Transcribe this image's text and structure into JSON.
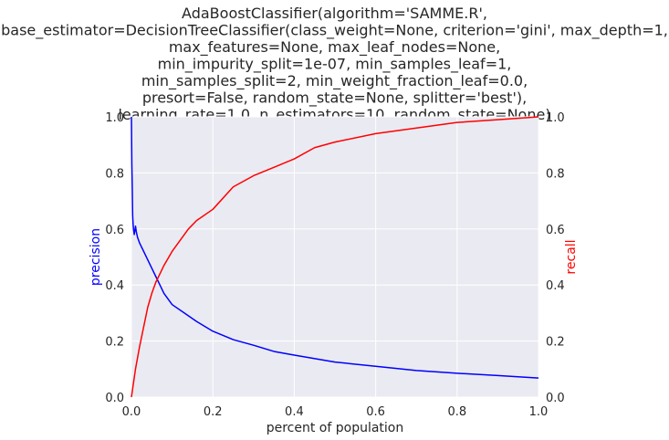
{
  "chart_data": {
    "type": "line",
    "title_lines": [
      "AdaBoostClassifier(algorithm='SAMME.R',",
      "base_estimator=DecisionTreeClassifier(class_weight=None, criterion='gini', max_depth=1,",
      "max_features=None, max_leaf_nodes=None,",
      "min_impurity_split=1e-07, min_samples_leaf=1,",
      "min_samples_split=2, min_weight_fraction_leaf=0.0,",
      "presort=False, random_state=None, splitter='best'),",
      "learning_rate=1.0, n_estimators=10, random_state=None)"
    ],
    "xlabel": "percent of population",
    "ylabel_left": "precision",
    "ylabel_right": "recall",
    "xlim": [
      0,
      1
    ],
    "ylim_left": [
      0,
      1
    ],
    "ylim_right": [
      0,
      1
    ],
    "x_ticks": [
      "0.0",
      "0.2",
      "0.4",
      "0.6",
      "0.8",
      "1.0"
    ],
    "y_ticks_left": [
      "0.0",
      "0.2",
      "0.4",
      "0.6",
      "0.8",
      "1.0"
    ],
    "y_ticks_right": [
      "0.0",
      "0.2",
      "0.4",
      "0.6",
      "0.8",
      "1.0"
    ],
    "grid": true,
    "background": "#eaeaf2",
    "series": [
      {
        "axis": "left",
        "color": "#0000ff",
        "x": [
          0.0,
          0.001,
          0.002,
          0.003,
          0.004,
          0.005,
          0.007,
          0.01,
          0.012,
          0.015,
          0.02,
          0.03,
          0.04,
          0.05,
          0.06,
          0.07,
          0.08,
          0.1,
          0.13,
          0.16,
          0.2,
          0.25,
          0.3,
          0.35,
          0.4,
          0.5,
          0.6,
          0.7,
          0.8,
          0.9,
          1.0
        ],
        "values": [
          1.0,
          0.83,
          0.75,
          0.65,
          0.62,
          0.6,
          0.58,
          0.61,
          0.59,
          0.57,
          0.55,
          0.52,
          0.49,
          0.46,
          0.43,
          0.4,
          0.37,
          0.33,
          0.3,
          0.27,
          0.235,
          0.205,
          0.185,
          0.163,
          0.15,
          0.125,
          0.11,
          0.095,
          0.085,
          0.077,
          0.068
        ]
      },
      {
        "axis": "right",
        "color": "#ff0000",
        "x": [
          0.0,
          0.005,
          0.01,
          0.02,
          0.03,
          0.04,
          0.05,
          0.06,
          0.07,
          0.08,
          0.1,
          0.12,
          0.14,
          0.16,
          0.2,
          0.25,
          0.3,
          0.35,
          0.4,
          0.45,
          0.5,
          0.6,
          0.7,
          0.8,
          0.9,
          1.0
        ],
        "values": [
          0.0,
          0.05,
          0.1,
          0.18,
          0.25,
          0.32,
          0.37,
          0.41,
          0.44,
          0.47,
          0.52,
          0.56,
          0.6,
          0.63,
          0.67,
          0.75,
          0.79,
          0.82,
          0.85,
          0.89,
          0.91,
          0.94,
          0.96,
          0.98,
          0.99,
          1.0
        ]
      }
    ]
  }
}
